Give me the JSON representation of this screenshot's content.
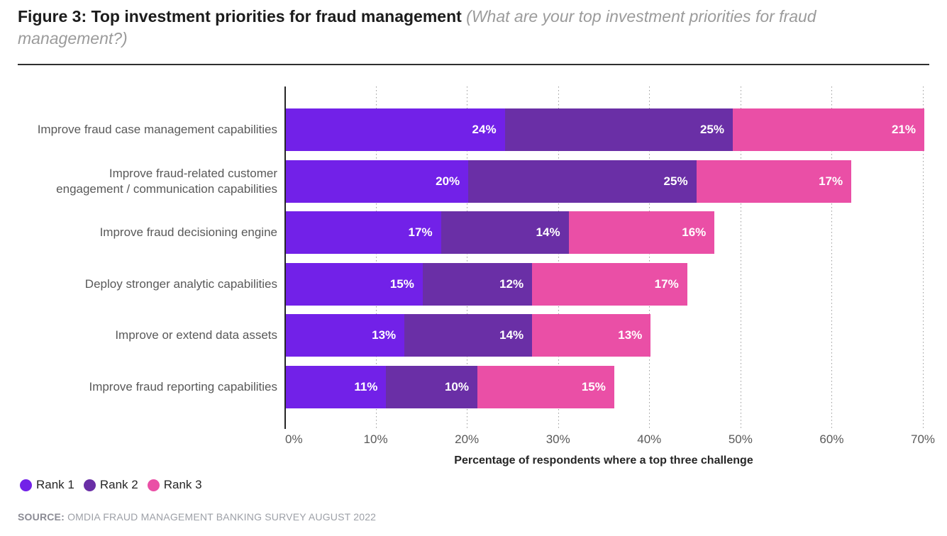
{
  "header": {
    "title": "Figure 3: Top investment priorities for fraud management",
    "subtitle": "(What are your top investment priorities for fraud management?)"
  },
  "chart_data": {
    "type": "bar",
    "orientation": "horizontal-stacked",
    "title": "Figure 3: Top investment priorities for fraud management",
    "categories": [
      "Improve fraud case management capabilities",
      "Improve fraud-related customer\nengagement / communication capabilities",
      "Improve fraud decisioning engine",
      "Deploy stronger analytic capabilities",
      "Improve or extend data assets",
      "Improve fraud reporting capabilities"
    ],
    "series": [
      {
        "name": "Rank 1",
        "color": "#7221E8",
        "values": [
          24,
          20,
          17,
          15,
          13,
          11
        ]
      },
      {
        "name": "Rank 2",
        "color": "#6A2FA6",
        "values": [
          25,
          25,
          14,
          12,
          14,
          10
        ]
      },
      {
        "name": "Rank 3",
        "color": "#EA4FA6",
        "values": [
          21,
          17,
          16,
          17,
          13,
          15
        ]
      }
    ],
    "value_suffix": "%",
    "xlabel": "Percentage of respondents where a top three challenge",
    "ylabel": "",
    "x_ticks": [
      "0%",
      "10%",
      "20%",
      "30%",
      "40%",
      "50%",
      "60%",
      "70%"
    ],
    "xlim": [
      0,
      70
    ],
    "grid": "vertical-dotted",
    "legend_position": "bottom-left"
  },
  "source": {
    "label": "SOURCE:",
    "text": "OMDIA FRAUD MANAGEMENT BANKING SURVEY AUGUST 2022"
  }
}
